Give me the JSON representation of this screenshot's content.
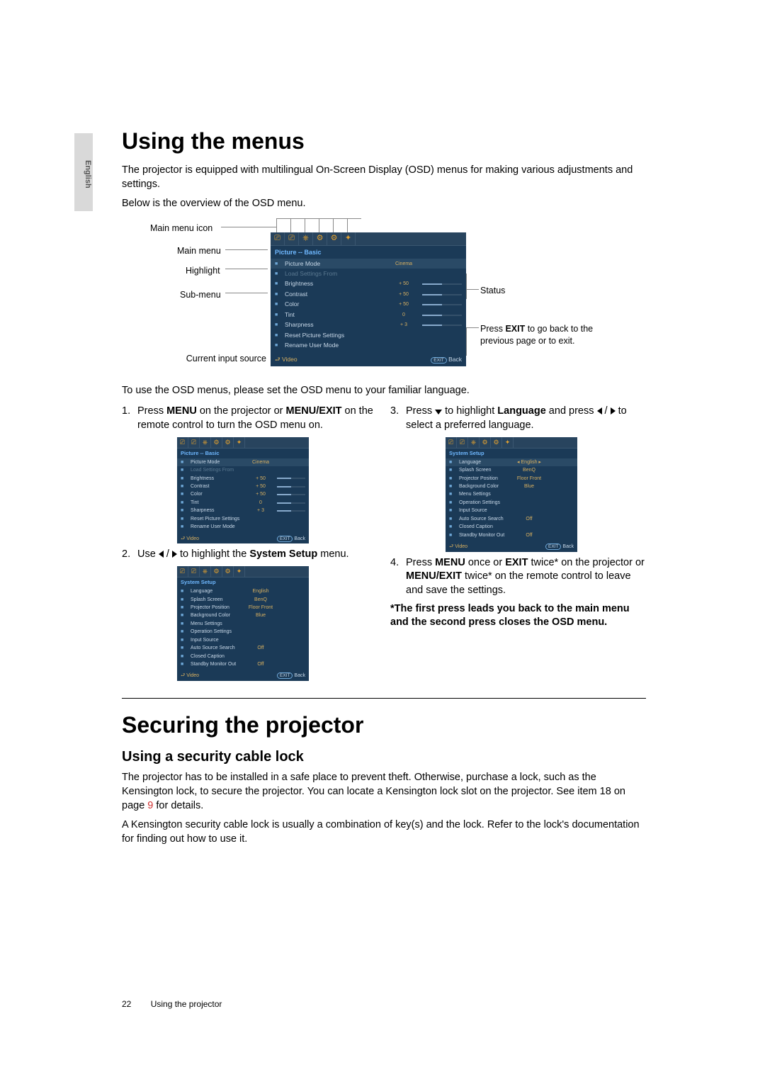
{
  "lang_tab": "English",
  "section1": {
    "heading": "Using the menus",
    "intro1": "The projector is equipped with multilingual On-Screen Display (OSD) menus for making various adjustments and settings.",
    "intro2": "Below is the overview of the OSD menu.",
    "diagram_labels": {
      "main_icon": "Main menu icon",
      "main_menu": "Main menu",
      "highlight": "Highlight",
      "sub_menu": "Sub-menu",
      "current_source": "Current input source",
      "status": "Status",
      "exit_note_a": "Press ",
      "exit_note_bold": "EXIT",
      "exit_note_b": " to go back to the previous page or to exit."
    },
    "osd_main": {
      "title": "Picture -- Basic",
      "colors": {
        "bg": "#1b3a57",
        "title": "#6fb8ff",
        "value": "#d8b060",
        "icon": "#e0a030"
      },
      "icons": [
        "⎚",
        "⎚",
        "⎈",
        "⚙",
        "⚙",
        "✦"
      ],
      "rows": [
        {
          "label": "Picture Mode",
          "value": "Cinema",
          "bar": false,
          "hl": true
        },
        {
          "label": "Load Settings From",
          "value": "",
          "bar": false,
          "dis": true
        },
        {
          "label": "Brightness",
          "value": "+ 50",
          "bar": true
        },
        {
          "label": "Contrast",
          "value": "+ 50",
          "bar": true
        },
        {
          "label": "Color",
          "value": "+ 50",
          "bar": true
        },
        {
          "label": "Tint",
          "value": "0",
          "bar": true
        },
        {
          "label": "Sharpness",
          "value": "+ 3",
          "bar": true
        },
        {
          "label": "Reset Picture Settings",
          "value": "",
          "bar": false
        },
        {
          "label": "Rename User Mode",
          "value": "",
          "bar": false
        }
      ],
      "footer_src": "Video",
      "footer_exit": "EXIT",
      "footer_back": "Back"
    },
    "after_diagram": "To use the OSD menus, please set the OSD menu to your familiar language.",
    "steps": {
      "s1_a": "Press ",
      "s1_b1": "MENU",
      "s1_c": " on the projector or ",
      "s1_b2": "MENU/EXIT",
      "s1_d": " on the remote control to turn the OSD menu on.",
      "s2_a": "Use ",
      "s2_b": " to highlight the ",
      "s2_bold": "System Setup",
      "s2_c": " menu.",
      "s3_a": "Press ",
      "s3_b": " to highlight ",
      "s3_bold": "Language",
      "s3_c": " and press ",
      "s3_d": " to select a preferred language.",
      "s4_a": "Press ",
      "s4_b1": "MENU",
      "s4_c": " once or ",
      "s4_b2": "EXIT",
      "s4_d": " twice* on the projector or ",
      "s4_b3": "MENU/EXIT",
      "s4_e": " twice* on the remote control to leave and save the settings.",
      "note": "*The first press leads you back to the main menu and the second press closes the OSD menu."
    },
    "osd_system": {
      "title": "System Setup",
      "icons": [
        "⎚",
        "⎚",
        "⎈",
        "⚙",
        "⚙",
        "✦"
      ],
      "rows": [
        {
          "label": "Language",
          "value": "English",
          "hl": false
        },
        {
          "label": "Splash Screen",
          "value": "BenQ"
        },
        {
          "label": "Projector Position",
          "value": "Floor Front"
        },
        {
          "label": "Background Color",
          "value": "Blue"
        },
        {
          "label": "Menu Settings",
          "value": ""
        },
        {
          "label": "Operation Settings",
          "value": ""
        },
        {
          "label": "Input Source",
          "value": ""
        },
        {
          "label": "Auto Source Search",
          "value": "Off"
        },
        {
          "label": "Closed Caption",
          "value": ""
        },
        {
          "label": "Standby Monitor Out",
          "value": "Off"
        }
      ],
      "footer_src": "Video",
      "footer_exit": "EXIT",
      "footer_back": "Back"
    },
    "osd_system_hl": {
      "title": "System Setup",
      "icons": [
        "⎚",
        "⎚",
        "⎈",
        "⚙",
        "⚙",
        "✦"
      ],
      "rows": [
        {
          "label": "Language",
          "value": "English",
          "hl": true,
          "arrows": true
        },
        {
          "label": "Splash Screen",
          "value": "BenQ"
        },
        {
          "label": "Projector Position",
          "value": "Floor Front"
        },
        {
          "label": "Background Color",
          "value": "Blue"
        },
        {
          "label": "Menu Settings",
          "value": ""
        },
        {
          "label": "Operation Settings",
          "value": ""
        },
        {
          "label": "Input Source",
          "value": ""
        },
        {
          "label": "Auto Source Search",
          "value": "Off"
        },
        {
          "label": "Closed Caption",
          "value": ""
        },
        {
          "label": "Standby Monitor Out",
          "value": "Off"
        }
      ],
      "footer_src": "Video",
      "footer_exit": "EXIT",
      "footer_back": "Back"
    }
  },
  "section2": {
    "heading": "Securing the projector",
    "sub": "Using a security cable lock",
    "p1_a": "The projector has to be installed in a safe place to prevent theft. Otherwise, purchase a lock, such as the Kensington lock, to secure the projector. You can locate a Kensington lock slot on the projector. See item 18 on page ",
    "p1_link": "9",
    "p1_b": " for details.",
    "p2": "A Kensington security cable lock is usually a combination of key(s) and the lock. Refer to the lock's documentation for finding out how to use it."
  },
  "footer": {
    "page": "22",
    "section": "Using the projector"
  }
}
